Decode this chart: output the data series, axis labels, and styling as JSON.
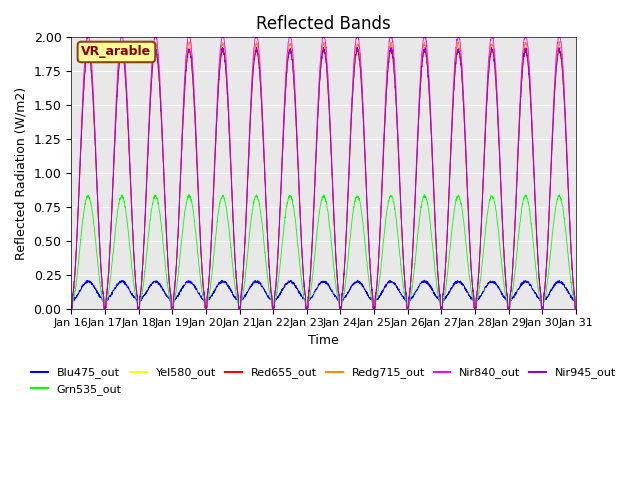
{
  "title": "Reflected Bands",
  "xlabel": "Time",
  "ylabel": "Reflected Radiation (W/m2)",
  "annotation_text": "VR_arable",
  "annotation_color": "#8B0000",
  "annotation_bg": "#FFFF99",
  "annotation_border": "#8B4513",
  "ylim": [
    0,
    2.0
  ],
  "background_color": "#e8e8e8",
  "series": [
    {
      "label": "Blu475_out",
      "color": "#0000FF"
    },
    {
      "label": "Grn535_out",
      "color": "#00FF00"
    },
    {
      "label": "Yel580_out",
      "color": "#FFFF00"
    },
    {
      "label": "Red655_out",
      "color": "#FF0000"
    },
    {
      "label": "Redg715_out",
      "color": "#FF8C00"
    },
    {
      "label": "Nir840_out",
      "color": "#FF00FF"
    },
    {
      "label": "Nir945_out",
      "color": "#9400D3"
    }
  ],
  "x_tick_labels": [
    "Jan 16",
    "Jan 17",
    "Jan 18",
    "Jan 19",
    "Jan 20",
    "Jan 21",
    "Jan 22",
    "Jan 23",
    "Jan 24",
    "Jan 25",
    "Jan 26",
    "Jan 27",
    "Jan 28",
    "Jan 29",
    "Jan 30",
    "Jan 31"
  ],
  "num_days": 15,
  "points_per_day": 144
}
